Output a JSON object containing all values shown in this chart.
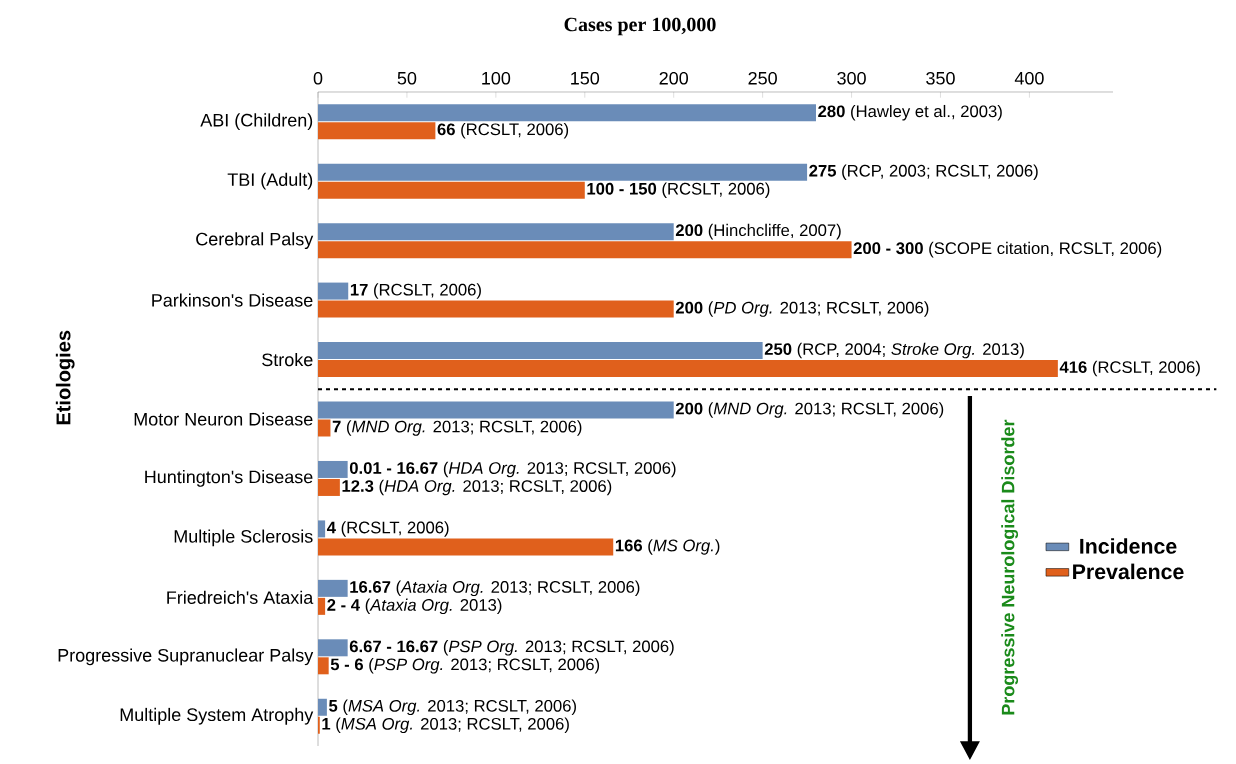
{
  "chart_data": {
    "type": "bar",
    "orientation": "horizontal",
    "xlabel": "Cases per 100,000",
    "ylabel": "Etiologies",
    "categories": [
      "ABI (Children)",
      "TBI (Adult)",
      "Cerebral Palsy",
      "Parkinson's Disease",
      "Stroke",
      "Motor Neuron Disease",
      "Huntington's Disease",
      "Multiple Sclerosis",
      "Friedreich's Ataxia",
      "Progressive Supranuclear Palsy",
      "Multiple System Atrophy"
    ],
    "series": [
      {
        "name": "Incidence",
        "color": "#6a8cb8",
        "values": [
          280,
          275,
          200,
          17,
          250,
          200,
          16.67,
          4,
          16.67,
          16.67,
          5
        ],
        "value_labels": [
          "**280** (Hawley et al., 2003)",
          "**275** (RCP, 2003; RCSLT, 2006)",
          "**200** (Hinchcliffe, 2007)",
          "**17** (RCSLT, 2006)",
          "**250** (RCP, 2004; *Stroke Org.* 2013)",
          "**200** (*MND Org.* 2013; RCSLT, 2006)",
          "**0.01 - 16.67** (*HDA Org.* 2013; RCSLT, 2006)",
          "**4** (RCSLT, 2006)",
          "**16.67** (*Ataxia Org.* 2013; RCSLT, 2006)",
          "**6.67 - 16.67** (*PSP Org.* 2013; RCSLT, 2006)",
          "**5** (*MSA Org.* 2013; RCSLT, 2006)"
        ]
      },
      {
        "name": "Prevalence",
        "color": "#e0601c",
        "values": [
          66,
          150,
          300,
          200,
          416,
          7,
          12.3,
          166,
          4,
          6,
          1
        ],
        "value_labels": [
          "**66** (RCSLT, 2006)",
          "**100 - 150** (RCSLT, 2006)",
          "**200 - 300** (SCOPE citation, RCSLT, 2006)",
          "**200** (*PD Org.* 2013; RCSLT, 2006)",
          "**416** (RCSLT, 2006)",
          "**7** (*MND Org.* 2013; RCSLT, 2006)",
          "**12.3** (*HDA Org.* 2013; RCSLT, 2006)",
          "**166** (*MS Org.*)",
          "**2 - 4** (*Ataxia Org.* 2013)",
          "**5 - 6** (*PSP Org.* 2013; RCSLT, 2006)",
          "**1** (*MSA Org.* 2013; RCSLT, 2006)"
        ]
      }
    ],
    "xlim": [
      0,
      447
    ],
    "xticks": [
      0,
      50,
      100,
      150,
      200,
      250,
      300,
      350,
      400
    ],
    "annotations": [
      "Progressive Neurological Disorder"
    ],
    "legend": "right"
  }
}
